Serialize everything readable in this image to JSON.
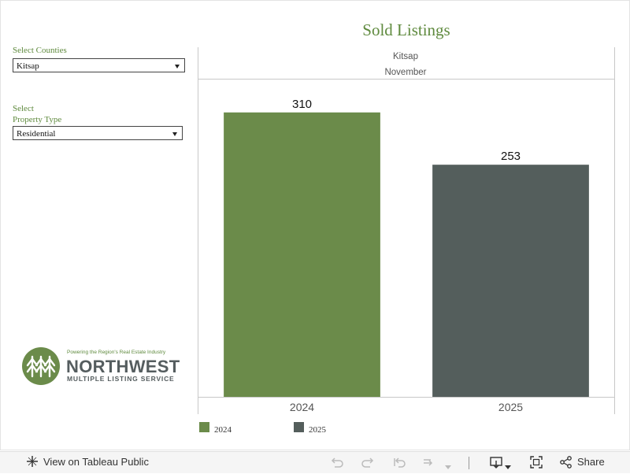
{
  "title": "Sold Listings",
  "filters": {
    "counties": {
      "label": "Select Counties",
      "value": "Kitsap"
    },
    "property_type": {
      "label_line1": "Select",
      "label_line2": "Property Type",
      "value": "Residential"
    }
  },
  "logo": {
    "tagline": "Powering the Region's Real Estate Industry",
    "name": "NORTHWEST",
    "subtitle": "MULTIPLE LISTING SERVICE"
  },
  "chart_data": {
    "type": "bar",
    "header_line1": "Kitsap",
    "header_line2": "November",
    "categories": [
      "2024",
      "2025"
    ],
    "values": [
      310,
      253
    ],
    "colors": [
      "#6b8b4a",
      "#545e5c"
    ],
    "ylim": [
      0,
      345
    ],
    "grid": false,
    "legend_placement": "bottom-left"
  },
  "legend": [
    {
      "label": "2024",
      "color": "#6b8b4a"
    },
    {
      "label": "2025",
      "color": "#545e5c"
    }
  ],
  "toolbar": {
    "view_label": "View on Tableau Public",
    "share_label": "Share"
  }
}
